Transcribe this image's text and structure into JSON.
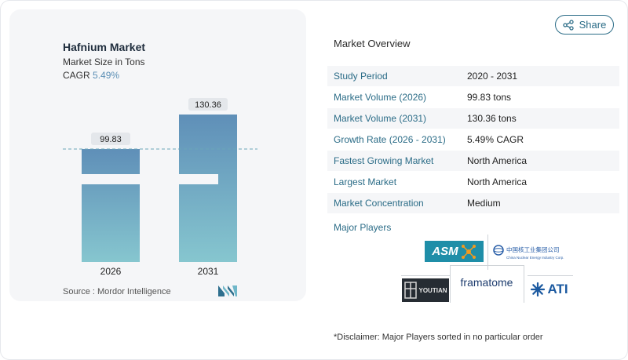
{
  "chart_data": {
    "type": "bar",
    "title": "Hafnium Market",
    "subtitle": "Market Size in Tons",
    "cagr_label": "CAGR",
    "cagr_value": "5.49%",
    "categories": [
      "2026",
      "2031"
    ],
    "values": [
      99.83,
      130.36
    ],
    "value_labels": [
      "99.83",
      "130.36"
    ],
    "axis_break": true,
    "colors": {
      "top": "#5f8fb8",
      "bottom": "#86c6cf",
      "reference_line": "#6aa6b8"
    }
  },
  "source": "Source :  Mordor Intelligence",
  "share": {
    "label": "Share"
  },
  "overview": {
    "title": "Market Overview",
    "rows": [
      {
        "key": "Study Period",
        "value": "2020 - 2031"
      },
      {
        "key": "Market Volume (2026)",
        "value": "99.83 tons"
      },
      {
        "key": "Market Volume (2031)",
        "value": "130.36 tons"
      },
      {
        "key": "Growth Rate (2026 - 2031)",
        "value": "5.49% CAGR"
      },
      {
        "key": "Fastest Growing Market",
        "value": "North America"
      },
      {
        "key": "Largest Market",
        "value": "North America"
      },
      {
        "key": "Market Concentration",
        "value": "Medium"
      }
    ]
  },
  "players": {
    "title": "Major Players",
    "logos": {
      "asm": "ASM",
      "cnnc": "中国核工业集团公司",
      "cnnc_en": "China Nuclear Energy Industry Corp.",
      "youtian": "YOUTIAN",
      "framatome": "framatome",
      "ati": "ATI"
    }
  },
  "disclaimer": "*Disclaimer: Major Players sorted in no particular order"
}
